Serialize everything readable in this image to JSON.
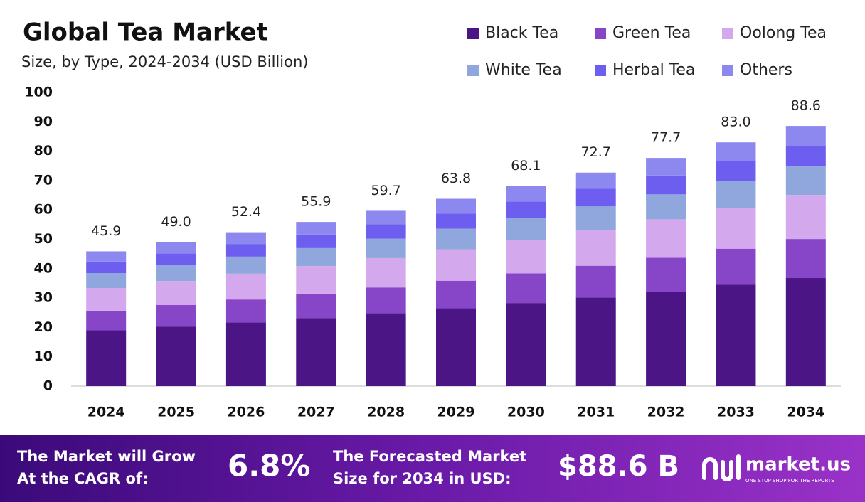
{
  "chart_data": {
    "type": "stacked_bar",
    "title": "Global Tea Market",
    "subtitle": "Size, by Type, 2024-2034 (USD Billion)",
    "categories": [
      "2024",
      "2025",
      "2026",
      "2027",
      "2028",
      "2029",
      "2030",
      "2031",
      "2032",
      "2033",
      "2034"
    ],
    "series": [
      {
        "name": "Black Tea",
        "color": "#4b1585",
        "values": [
          19.0,
          20.3,
          21.7,
          23.2,
          24.8,
          26.5,
          28.3,
          30.2,
          32.2,
          34.5,
          36.8
        ]
      },
      {
        "name": "Green Tea",
        "color": "#8745c8",
        "values": [
          6.7,
          7.3,
          7.8,
          8.3,
          8.8,
          9.4,
          10.1,
          10.8,
          11.5,
          12.3,
          13.3
        ]
      },
      {
        "name": "Oolong Tea",
        "color": "#d4a8ec",
        "values": [
          7.7,
          8.2,
          8.8,
          9.4,
          10.0,
          10.7,
          11.4,
          12.2,
          13.1,
          13.9,
          15.0
        ]
      },
      {
        "name": "White Tea",
        "color": "#8fa7dc",
        "values": [
          5.1,
          5.4,
          5.8,
          6.1,
          6.6,
          7.0,
          7.5,
          8.0,
          8.5,
          9.1,
          9.7
        ]
      },
      {
        "name": "Herbal Tea",
        "color": "#6e5ef0",
        "values": [
          3.9,
          4.0,
          4.3,
          4.6,
          4.9,
          5.2,
          5.6,
          6.0,
          6.4,
          6.8,
          7.0
        ]
      },
      {
        "name": "Others",
        "color": "#8d88f0",
        "values": [
          3.5,
          3.8,
          4.0,
          4.3,
          4.6,
          5.0,
          5.2,
          5.5,
          6.0,
          6.4,
          6.8
        ]
      }
    ],
    "totals": [
      45.9,
      49.0,
      52.4,
      55.9,
      59.7,
      63.8,
      68.1,
      72.7,
      77.7,
      83.0,
      88.6
    ],
    "total_labels": [
      "45.9",
      "49.0",
      "52.4",
      "55.9",
      "59.7",
      "63.8",
      "68.1",
      "72.7",
      "77.7",
      "83.0",
      "88.6"
    ],
    "ylim": [
      0,
      100
    ],
    "yticks": [
      0,
      10,
      20,
      30,
      40,
      50,
      60,
      70,
      80,
      90,
      100
    ],
    "grid": false,
    "legend": "top-right"
  },
  "footer": {
    "cagr_text": [
      "The Market will Grow",
      "At the CAGR of:"
    ],
    "cagr_value": "6.8%",
    "forecast_text": [
      "The Forecasted Market",
      "Size for 2034 in USD:"
    ],
    "forecast_value": "$88.6 B",
    "brand": "market.us",
    "tagline": "ONE STOP SHOP FOR THE REPORTS"
  }
}
